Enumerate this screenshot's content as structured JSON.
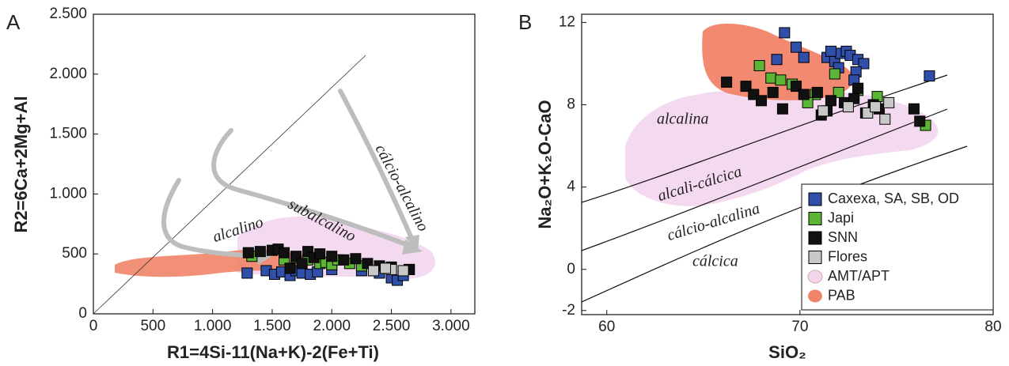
{
  "chart_data": [
    {
      "type": "scatter",
      "panel": "A",
      "xlabel": "R1=4Si-11(Na+K)-2(Fe+Ti)",
      "ylabel": "R2=6Ca+2Mg+Al",
      "xlim": [
        0,
        3200
      ],
      "ylim": [
        0,
        2500
      ],
      "xticks": [
        0,
        500,
        {
          "value": 1000,
          "label": "1.000"
        },
        {
          "value": 1500,
          "label": "1.500"
        },
        {
          "value": 2000,
          "label": "2.000"
        },
        {
          "value": 2500,
          "label": "2.500"
        },
        {
          "value": 3000,
          "label": "3.000"
        }
      ],
      "yticks": [
        0,
        500,
        {
          "value": 1000,
          "label": "1.000"
        },
        {
          "value": 1500,
          "label": "1.500"
        },
        {
          "value": 2000,
          "label": "2.000"
        },
        {
          "value": 2500,
          "label": "2.500"
        }
      ],
      "annotations": [
        "alcalino",
        "subalcalino",
        "cálcio-alcalino"
      ],
      "regions": [
        {
          "color": "#f3d6ee"
        },
        {
          "color": "#f08468"
        }
      ],
      "series": [
        {
          "color": "#2f4fa8",
          "x": [
            1290,
            1450,
            1520,
            1580,
            1650,
            1700,
            1750,
            1820,
            1880,
            2000,
            2250,
            2400,
            2500,
            2550,
            2600
          ],
          "values": [
            340,
            360,
            330,
            350,
            320,
            360,
            340,
            330,
            350,
            370,
            360,
            340,
            300,
            280,
            320
          ]
        },
        {
          "color": "#5db535",
          "x": [
            1330,
            1600,
            1700,
            1800,
            1900,
            1950,
            2000,
            2050,
            2150,
            2250,
            2650
          ],
          "values": [
            480,
            450,
            470,
            450,
            420,
            430,
            410,
            450,
            420,
            400,
            370
          ]
        },
        {
          "color": "#111111",
          "x": [
            1300,
            1400,
            1500,
            1550,
            1600,
            1700,
            1800,
            1850,
            1900,
            2000,
            2100,
            2200,
            2300,
            2400,
            2500,
            2650,
            1650,
            1750
          ],
          "values": [
            510,
            520,
            530,
            540,
            510,
            480,
            520,
            470,
            500,
            480,
            450,
            460,
            420,
            400,
            390,
            370,
            380,
            420
          ]
        },
        {
          "color": "#c8c8c8",
          "x": [
            2350,
            2500,
            2600,
            2450
          ],
          "values": [
            360,
            370,
            360,
            380
          ]
        }
      ]
    },
    {
      "type": "scatter",
      "panel": "B",
      "xlabel": "SiO₂",
      "ylabel": "Na₂O+K₂O-CaO",
      "xlim": [
        58.7,
        80
      ],
      "ylim": [
        -2.2,
        12.4
      ],
      "xticks": [
        60,
        70,
        80
      ],
      "yticks": [
        -2,
        0,
        4,
        8,
        12
      ],
      "annotations": [
        "alcalina",
        "alcali-cálcica",
        "cálcio-alcalina",
        "cálcica"
      ],
      "regions": [
        {
          "name": "AMT/APT",
          "color": "#f3d6ee"
        },
        {
          "name": "PAB",
          "color": "#f08468"
        }
      ],
      "series": [
        {
          "name": "Caxexa, SA, SB, OD",
          "color": "#2f4fa8",
          "x": [
            69.2,
            69.8,
            70.2,
            71.4,
            71.8,
            72.1,
            72.4,
            72.6,
            73.0,
            73.3,
            72.0,
            72.9,
            76.7,
            68.8,
            71.6,
            72.8
          ],
          "values": [
            11.5,
            10.8,
            10.3,
            10.3,
            10.1,
            10.5,
            10.6,
            10.4,
            10.2,
            10.0,
            9.8,
            9.6,
            9.4,
            10.2,
            10.6,
            9.2
          ]
        },
        {
          "name": "Japi",
          "color": "#5db535",
          "x": [
            67.9,
            68.5,
            69.0,
            71.8,
            70.8,
            70.4,
            72.0,
            73.0,
            74.0,
            76.5,
            69.6
          ],
          "values": [
            9.9,
            9.3,
            9.2,
            9.5,
            8.5,
            8.1,
            8.6,
            8.7,
            8.4,
            7.0,
            9.0
          ]
        },
        {
          "name": "SNN",
          "color": "#111111",
          "x": [
            66.2,
            67.2,
            67.6,
            68.0,
            68.6,
            69.1,
            69.8,
            70.2,
            70.9,
            71.1,
            71.6,
            72.3,
            72.8,
            73.4,
            73.8,
            74.1,
            75.9,
            76.2,
            71.4,
            73.0
          ],
          "values": [
            9.1,
            8.9,
            8.5,
            8.2,
            8.6,
            7.8,
            8.9,
            8.5,
            8.6,
            7.5,
            8.2,
            8.1,
            8.3,
            7.6,
            8.0,
            7.8,
            7.8,
            7.2,
            7.7,
            8.8
          ]
        },
        {
          "name": "Flores",
          "color": "#c8c8c8",
          "x": [
            71.2,
            72.5,
            73.5,
            74.4,
            74.6,
            73.9
          ],
          "values": [
            7.7,
            7.9,
            7.6,
            7.3,
            8.1,
            7.9
          ]
        }
      ]
    }
  ]
}
